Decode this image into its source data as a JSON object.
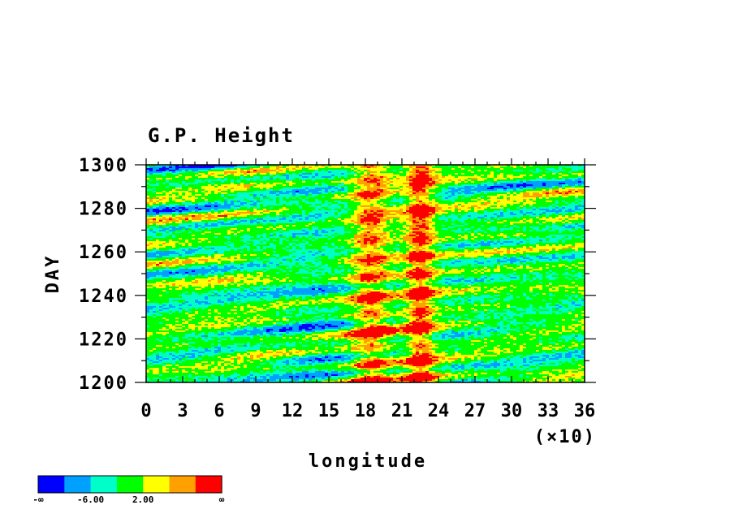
{
  "chart_data": {
    "type": "heatmap",
    "title": "G.P. Height",
    "xlabel": "longitude",
    "ylabel": "DAY",
    "x_multiplier_label": "(×10)",
    "xlim": [
      0,
      36
    ],
    "ylim": [
      1200,
      1300
    ],
    "x_ticks": [
      "0",
      "3",
      "6",
      "9",
      "12",
      "15",
      "18",
      "21",
      "24",
      "27",
      "30",
      "33",
      "36"
    ],
    "y_ticks": [
      "1200",
      "1220",
      "1240",
      "1260",
      "1280",
      "1300"
    ],
    "colorbar": {
      "colors": [
        "#0000ff",
        "#00a0ff",
        "#00ffc8",
        "#00ff00",
        "#ffff00",
        "#ffa000",
        "#ff0000"
      ],
      "labels": [
        "-∞",
        "-6.00",
        "2.00",
        "∞"
      ]
    }
  }
}
